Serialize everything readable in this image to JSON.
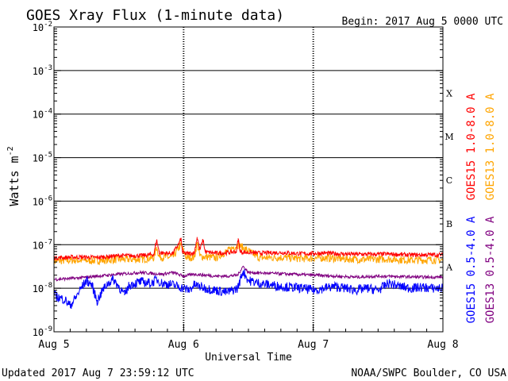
{
  "chart_data": {
    "type": "line",
    "title": "GOES Xray Flux (1-minute data)",
    "begin_label": "Begin:  2017 Aug 5 0000 UTC",
    "ylabel_base": "Watts m",
    "ylabel_exp": "-2",
    "xlabel": "Universal Time",
    "updated": "Updated 2017 Aug  7 23:59:12 UTC",
    "credit": "NOAA/SWPC Boulder, CO USA",
    "y_scale": "log",
    "ylim": [
      1e-09,
      0.01
    ],
    "xlim": [
      0,
      72
    ],
    "x_unit": "hours since 2017 Aug 5 0000 UTC",
    "x_ticks": [
      {
        "x": 0,
        "label": "Aug 5"
      },
      {
        "x": 24,
        "label": "Aug 6"
      },
      {
        "x": 48,
        "label": "Aug 7"
      },
      {
        "x": 72,
        "label": "Aug 8"
      }
    ],
    "y_ticks": [
      {
        "exp": -9,
        "base": "10",
        "sup": "-9"
      },
      {
        "exp": -8,
        "base": "10",
        "sup": "-8"
      },
      {
        "exp": -7,
        "base": "10",
        "sup": "-7"
      },
      {
        "exp": -6,
        "base": "10",
        "sup": "-6"
      },
      {
        "exp": -5,
        "base": "10",
        "sup": "-5"
      },
      {
        "exp": -4,
        "base": "10",
        "sup": "-4"
      },
      {
        "exp": -3,
        "base": "10",
        "sup": "-3"
      },
      {
        "exp": -2,
        "base": "10",
        "sup": "-2"
      }
    ],
    "flare_classes": [
      {
        "label": "A",
        "exp": -8
      },
      {
        "label": "B",
        "exp": -7
      },
      {
        "label": "C",
        "exp": -6
      },
      {
        "label": "M",
        "exp": -5
      },
      {
        "label": "X",
        "exp": -4
      }
    ],
    "series": [
      {
        "name": "GOES15 1.0-8.0 A",
        "color": "#ff0000",
        "x": [
          0,
          4,
          8,
          12,
          16,
          18.5,
          19,
          19.5,
          22,
          23.2,
          23.5,
          23.8,
          24.5,
          26,
          26.5,
          27,
          27.6,
          28,
          30,
          32,
          33.8,
          34.1,
          34.5,
          38,
          42,
          46,
          50,
          54,
          58,
          62,
          66,
          70,
          72
        ],
        "y": [
          5e-08,
          5.2e-08,
          5.1e-08,
          5.6e-08,
          5.6e-08,
          6e-08,
          1.3e-07,
          6.5e-08,
          6.3e-08,
          1.1e-07,
          1.4e-07,
          6.5e-08,
          6.2e-08,
          6.5e-08,
          1.5e-07,
          7.5e-08,
          1.3e-07,
          6.8e-08,
          6.4e-08,
          6.5e-08,
          7e-08,
          1.4e-07,
          6.8e-08,
          6.4e-08,
          6.6e-08,
          6.2e-08,
          6.4e-08,
          6.1e-08,
          6e-08,
          6.1e-08,
          5.8e-08,
          5.9e-08,
          5.8e-08
        ]
      },
      {
        "name": "GOES13 1.0-8.0 A",
        "color": "#ffa500",
        "x": [
          0,
          4,
          8,
          12,
          16,
          18.5,
          19,
          19.5,
          22,
          23.5,
          24.5,
          26,
          26.5,
          27,
          30,
          34.1,
          38,
          42,
          46,
          50,
          54,
          58,
          62,
          66,
          70,
          72
        ],
        "y": [
          4.2e-08,
          4.4e-08,
          4.3e-08,
          4.6e-08,
          4.6e-08,
          5e-08,
          9e-08,
          5.2e-08,
          5.1e-08,
          1e-07,
          5e-08,
          5.2e-08,
          1.1e-07,
          5.4e-08,
          5e-08,
          1e-07,
          5e-08,
          5.1e-08,
          4.8e-08,
          5e-08,
          4.7e-08,
          4.6e-08,
          4.7e-08,
          4.4e-08,
          4.5e-08,
          4.4e-08
        ]
      },
      {
        "name": "GOES15 0.5-4.0 A",
        "color": "#0000ff",
        "x": [
          0,
          1,
          2,
          3,
          4,
          5,
          6,
          7,
          8,
          9,
          10,
          11,
          12,
          13,
          14,
          16,
          18,
          19,
          20,
          22,
          24,
          25,
          26,
          28,
          30,
          32,
          34,
          35,
          36,
          38,
          40,
          42,
          44,
          46,
          48,
          50,
          52,
          54,
          56,
          58,
          60,
          62,
          64,
          66,
          68,
          70,
          72
        ],
        "y": [
          7e-09,
          6e-09,
          5.5e-09,
          4e-09,
          6e-09,
          1e-08,
          1.5e-08,
          1.2e-08,
          5e-09,
          9e-09,
          1.3e-08,
          1.6e-08,
          1.1e-08,
          7e-09,
          1.2e-08,
          1.4e-08,
          1.3e-08,
          1.6e-08,
          1.3e-08,
          1.2e-08,
          1e-08,
          9e-09,
          1.2e-08,
          1e-08,
          9e-09,
          8e-09,
          1e-08,
          2.5e-08,
          1.5e-08,
          1.3e-08,
          1.2e-08,
          1.1e-08,
          1.05e-08,
          1e-08,
          9e-09,
          1e-08,
          1.1e-08,
          1e-08,
          9e-09,
          1e-08,
          9e-09,
          1.3e-08,
          1.1e-08,
          1e-08,
          1.05e-08,
          1e-08,
          1e-08
        ]
      },
      {
        "name": "GOES13 0.5-4.0 A",
        "color": "#800080",
        "x": [
          0,
          4,
          8,
          12,
          16,
          20,
          22,
          24,
          26,
          28,
          30,
          32,
          34,
          35,
          36,
          40,
          44,
          48,
          52,
          56,
          60,
          64,
          68,
          72
        ],
        "y": [
          1.6e-08,
          1.7e-08,
          1.9e-08,
          2.1e-08,
          2.3e-08,
          2.1e-08,
          2.3e-08,
          1.9e-08,
          2.1e-08,
          2e-08,
          1.9e-08,
          1.9e-08,
          2e-08,
          3.2e-08,
          2.3e-08,
          2.2e-08,
          2.1e-08,
          2e-08,
          1.9e-08,
          1.8e-08,
          1.9e-08,
          1.85e-08,
          1.8e-08,
          1.8e-08
        ]
      }
    ]
  }
}
